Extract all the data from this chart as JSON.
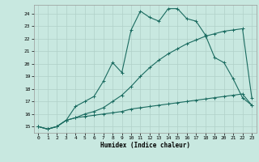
{
  "xlabel": "Humidex (Indice chaleur)",
  "bg_color": "#c8e8e0",
  "grid_color": "#b0d0c8",
  "line_color": "#1a6b60",
  "xlim": [
    -0.5,
    23.5
  ],
  "ylim": [
    14.5,
    24.7
  ],
  "xticks": [
    0,
    1,
    2,
    3,
    4,
    5,
    6,
    7,
    8,
    9,
    10,
    11,
    12,
    13,
    14,
    15,
    16,
    17,
    18,
    19,
    20,
    21,
    22,
    23
  ],
  "yticks": [
    15,
    16,
    17,
    18,
    19,
    20,
    21,
    22,
    23,
    24
  ],
  "line1_x": [
    0,
    1,
    2,
    3,
    4,
    5,
    6,
    7,
    8,
    9,
    10,
    11,
    12,
    13,
    14,
    15,
    16,
    17,
    18,
    19,
    20,
    21,
    22,
    23
  ],
  "line1_y": [
    15.0,
    14.8,
    15.0,
    15.5,
    15.7,
    15.8,
    15.9,
    16.0,
    16.1,
    16.2,
    16.4,
    16.5,
    16.6,
    16.7,
    16.8,
    16.9,
    17.0,
    17.1,
    17.2,
    17.3,
    17.4,
    17.5,
    17.6,
    16.7
  ],
  "line2_x": [
    0,
    1,
    2,
    3,
    4,
    5,
    6,
    7,
    8,
    9,
    10,
    11,
    12,
    13,
    14,
    15,
    16,
    17,
    18,
    19,
    20,
    21,
    22,
    23
  ],
  "line2_y": [
    15.0,
    14.8,
    15.0,
    15.5,
    15.7,
    16.0,
    16.2,
    16.5,
    17.0,
    17.5,
    18.2,
    19.0,
    19.7,
    20.3,
    20.8,
    21.2,
    21.6,
    21.9,
    22.2,
    22.4,
    22.6,
    22.7,
    22.8,
    17.3
  ],
  "line3_x": [
    0,
    1,
    2,
    3,
    4,
    5,
    6,
    7,
    8,
    9,
    10,
    11,
    12,
    13,
    14,
    15,
    16,
    17,
    18,
    19,
    20,
    21,
    22,
    23
  ],
  "line3_y": [
    15.0,
    14.8,
    15.0,
    15.5,
    16.6,
    17.0,
    17.4,
    18.6,
    20.1,
    19.3,
    22.7,
    24.2,
    23.7,
    23.4,
    24.4,
    24.4,
    23.6,
    23.4,
    22.3,
    20.5,
    20.1,
    18.8,
    17.3,
    16.7
  ]
}
